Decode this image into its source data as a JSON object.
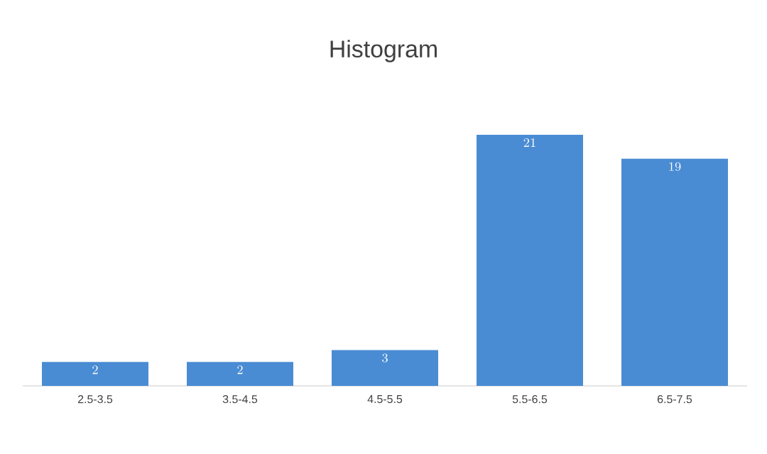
{
  "chart_data": {
    "type": "bar",
    "title": "Histogram",
    "categories": [
      "2.5-3.5",
      "3.5-4.5",
      "4.5-5.5",
      "5.5-6.5",
      "6.5-7.5"
    ],
    "values": [
      2,
      2,
      3,
      21,
      19
    ],
    "color": "#4a8cd3",
    "data_labels": true
  }
}
